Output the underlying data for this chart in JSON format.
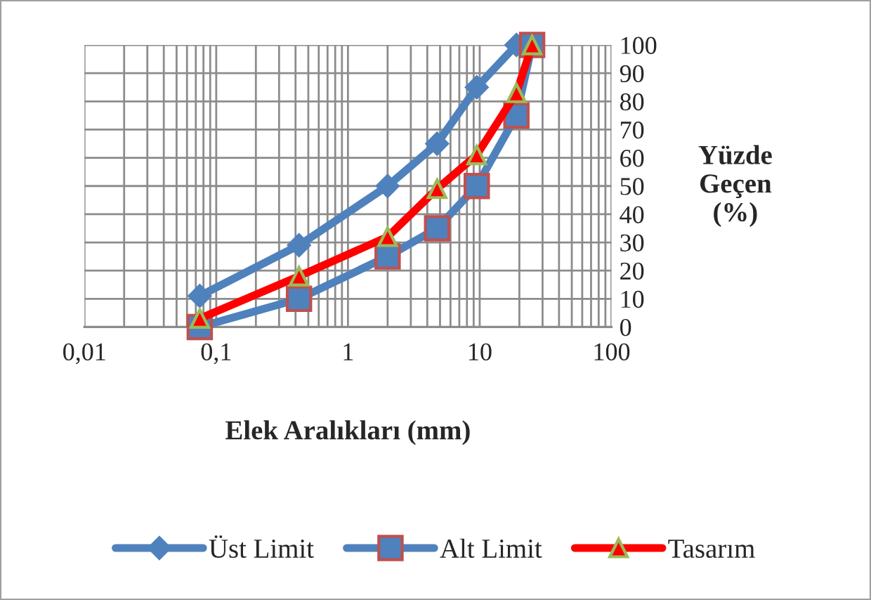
{
  "chart_data": {
    "type": "line",
    "xlabel": "Elek Aralıkları (mm)",
    "ylabel": "Yüzde\nGeçen\n(%)",
    "log": "x",
    "xlim": [
      0.01,
      100
    ],
    "ylim": [
      0,
      100
    ],
    "xticks": [
      {
        "value": 0.01,
        "label": "0,01"
      },
      {
        "value": 0.1,
        "label": "0,1"
      },
      1,
      10,
      100
    ],
    "yticks": [
      0,
      10,
      20,
      30,
      40,
      50,
      60,
      70,
      80,
      90,
      100
    ],
    "grid": true,
    "legend": "bottom",
    "series": [
      {
        "name": "Üst Limit",
        "color": "#4f81bd",
        "marker": "diamond",
        "x": [
          0.075,
          0.425,
          2,
          4.75,
          9.5,
          19
        ],
        "values": [
          11,
          29,
          50,
          65,
          85,
          100
        ]
      },
      {
        "name": "Alt Limit",
        "color": "#4f81bd",
        "marker": "square",
        "x": [
          0.075,
          0.425,
          2,
          4.75,
          9.5,
          19,
          25
        ],
        "values": [
          0,
          10,
          25,
          35,
          50,
          75,
          100
        ]
      },
      {
        "name": "Tasarım",
        "color": "#ff0000",
        "marker": "triangle",
        "x": [
          0.075,
          0.425,
          2,
          4.75,
          9.5,
          19,
          25
        ],
        "values": [
          3,
          18,
          32,
          49,
          61,
          83,
          100
        ]
      }
    ]
  }
}
